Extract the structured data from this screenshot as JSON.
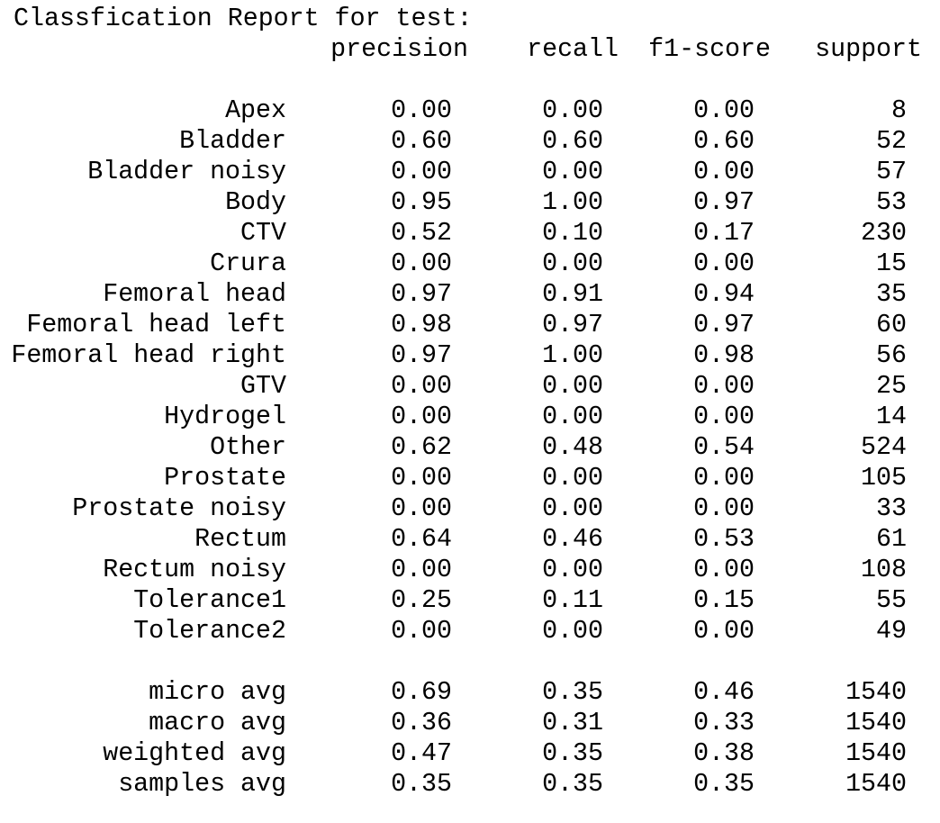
{
  "report": {
    "title": "Classfication Report for test:",
    "headers": {
      "precision": "precision",
      "recall": "recall",
      "f1": "f1-score",
      "support": "support"
    },
    "rows": [
      {
        "label": "Apex",
        "precision": "0.00",
        "recall": "0.00",
        "f1": "0.00",
        "support": "8"
      },
      {
        "label": "Bladder",
        "precision": "0.60",
        "recall": "0.60",
        "f1": "0.60",
        "support": "52"
      },
      {
        "label": "Bladder noisy",
        "precision": "0.00",
        "recall": "0.00",
        "f1": "0.00",
        "support": "57"
      },
      {
        "label": "Body",
        "precision": "0.95",
        "recall": "1.00",
        "f1": "0.97",
        "support": "53"
      },
      {
        "label": "CTV",
        "precision": "0.52",
        "recall": "0.10",
        "f1": "0.17",
        "support": "230"
      },
      {
        "label": "Crura",
        "precision": "0.00",
        "recall": "0.00",
        "f1": "0.00",
        "support": "15"
      },
      {
        "label": "Femoral head",
        "precision": "0.97",
        "recall": "0.91",
        "f1": "0.94",
        "support": "35"
      },
      {
        "label": "Femoral head left",
        "precision": "0.98",
        "recall": "0.97",
        "f1": "0.97",
        "support": "60"
      },
      {
        "label": "Femoral head right",
        "precision": "0.97",
        "recall": "1.00",
        "f1": "0.98",
        "support": "56"
      },
      {
        "label": "GTV",
        "precision": "0.00",
        "recall": "0.00",
        "f1": "0.00",
        "support": "25"
      },
      {
        "label": "Hydrogel",
        "precision": "0.00",
        "recall": "0.00",
        "f1": "0.00",
        "support": "14"
      },
      {
        "label": "Other",
        "precision": "0.62",
        "recall": "0.48",
        "f1": "0.54",
        "support": "524"
      },
      {
        "label": "Prostate",
        "precision": "0.00",
        "recall": "0.00",
        "f1": "0.00",
        "support": "105"
      },
      {
        "label": "Prostate noisy",
        "precision": "0.00",
        "recall": "0.00",
        "f1": "0.00",
        "support": "33"
      },
      {
        "label": "Rectum",
        "precision": "0.64",
        "recall": "0.46",
        "f1": "0.53",
        "support": "61"
      },
      {
        "label": "Rectum noisy",
        "precision": "0.00",
        "recall": "0.00",
        "f1": "0.00",
        "support": "108"
      },
      {
        "label": "Tolerance1",
        "precision": "0.25",
        "recall": "0.11",
        "f1": "0.15",
        "support": "55"
      },
      {
        "label": "Tolerance2",
        "precision": "0.00",
        "recall": "0.00",
        "f1": "0.00",
        "support": "49"
      }
    ],
    "averages": [
      {
        "label": "micro avg",
        "precision": "0.69",
        "recall": "0.35",
        "f1": "0.46",
        "support": "1540"
      },
      {
        "label": "macro avg",
        "precision": "0.36",
        "recall": "0.31",
        "f1": "0.33",
        "support": "1540"
      },
      {
        "label": "weighted avg",
        "precision": "0.47",
        "recall": "0.35",
        "f1": "0.38",
        "support": "1540"
      },
      {
        "label": "samples avg",
        "precision": "0.35",
        "recall": "0.35",
        "f1": "0.35",
        "support": "1540"
      }
    ]
  }
}
